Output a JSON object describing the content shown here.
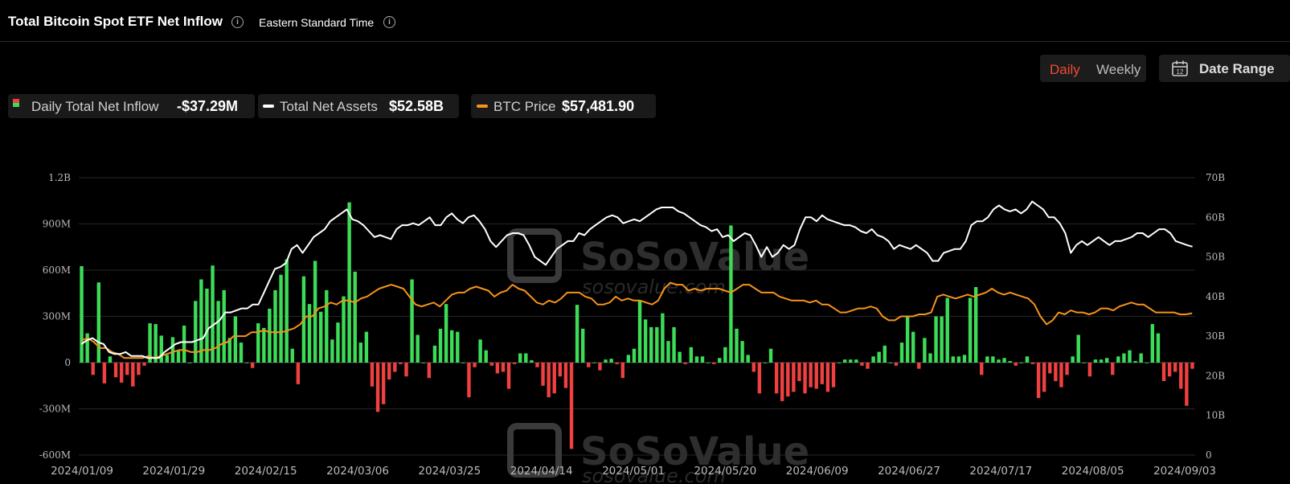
{
  "header": {
    "title": "Total Bitcoin Spot ETF Net Inflow",
    "timezone": "Eastern Standard Time",
    "info_glyph": "i"
  },
  "controls": {
    "daily_label": "Daily",
    "weekly_label": "Weekly",
    "date_range_label": "Date Range",
    "active_color": "#f04a36",
    "calendar_icon_text": "12"
  },
  "legend": {
    "inflow": {
      "label": "Daily Total Net Inflow",
      "value": "-$37.29M"
    },
    "assets": {
      "label": "Total Net Assets",
      "value": "$52.58B"
    },
    "price": {
      "label": "BTC Price",
      "value": "$57,481.90"
    }
  },
  "colors": {
    "positive": "#3ddc58",
    "negative": "#f04040",
    "assets_line": "#ffffff",
    "price_line": "#f7931a"
  },
  "watermark": {
    "brand": "SoSoValue",
    "site": "sosovalue.com"
  },
  "chart_data": {
    "type": "bar",
    "x_start": "2024/01/11",
    "x_end": "2024/09/03",
    "x_tick_labels": [
      "2024/01/09",
      "2024/01/29",
      "2024/02/15",
      "2024/03/06",
      "2024/03/25",
      "2024/04/14",
      "2024/05/01",
      "2024/05/20",
      "2024/06/09",
      "2024/06/27",
      "2024/07/17",
      "2024/08/05",
      "2024/09/03"
    ],
    "y_left_ticks": [
      "1.2B",
      "900M",
      "600M",
      "300M",
      "0",
      "-300M",
      "-600M"
    ],
    "y_left_range_musd": [
      -600,
      1200
    ],
    "y_right_ticks": [
      "70B",
      "60B",
      "50B",
      "40B",
      "30B",
      "20B",
      "10B",
      "0"
    ],
    "y_right_range_busd": [
      0,
      70
    ],
    "grid": true,
    "series": [
      {
        "name": "Daily Total Net Inflow",
        "kind": "bar",
        "unit": "M USD",
        "values": [
          626,
          190,
          -80,
          520,
          -135,
          40,
          -95,
          -130,
          -80,
          -155,
          -80,
          -20,
          255,
          250,
          175,
          50,
          165,
          75,
          240,
          0,
          400,
          540,
          480,
          630,
          400,
          470,
          160,
          300,
          130,
          0,
          -35,
          255,
          225,
          350,
          470,
          570,
          670,
          90,
          -140,
          560,
          380,
          660,
          330,
          470,
          150,
          260,
          430,
          1040,
          590,
          130,
          200,
          -155,
          -320,
          -270,
          -110,
          -60,
          -10,
          -90,
          540,
          180,
          0,
          -100,
          110,
          220,
          380,
          210,
          200,
          0,
          -225,
          -30,
          150,
          80,
          -20,
          -70,
          -60,
          -170,
          -10,
          60,
          60,
          15,
          -30,
          -150,
          -225,
          -200,
          -90,
          -165,
          -560,
          375,
          220,
          -30,
          0,
          -50,
          20,
          25,
          -10,
          -100,
          50,
          90,
          400,
          280,
          230,
          230,
          320,
          140,
          230,
          70,
          -10,
          100,
          40,
          40,
          0,
          -10,
          30,
          100,
          890,
          220,
          140,
          50,
          -60,
          -200,
          0,
          90,
          -200,
          -250,
          -220,
          -190,
          -120,
          -200,
          -160,
          -170,
          -140,
          -190,
          -160,
          0,
          20,
          20,
          20,
          -20,
          -40,
          40,
          70,
          110,
          0,
          -20,
          130,
          300,
          200,
          -40,
          160,
          60,
          300,
          300,
          420,
          40,
          40,
          50,
          420,
          490,
          -80,
          40,
          40,
          20,
          30,
          10,
          -20,
          0,
          40,
          -10,
          -230,
          -190,
          -70,
          -120,
          -160,
          -80,
          40,
          180,
          0,
          -90,
          20,
          20,
          30,
          -80,
          40,
          60,
          80,
          10,
          60,
          0,
          250,
          190,
          -120,
          -90,
          -60,
          -170,
          -280,
          -40
        ]
      },
      {
        "name": "Total Net Assets",
        "kind": "line",
        "unit": "B USD",
        "values": [
          28,
          29,
          29.5,
          28.5,
          28,
          26,
          25.5,
          25.5,
          26,
          25,
          25,
          25,
          24.5,
          24.5,
          24.5,
          26,
          27,
          28,
          28.5,
          28.5,
          28.5,
          29,
          29.5,
          32,
          33,
          34,
          36,
          36,
          36.5,
          37,
          37,
          38,
          38,
          41,
          44,
          47,
          47.5,
          48.5,
          52,
          53,
          51,
          53,
          55,
          56,
          57,
          59,
          60,
          61,
          62,
          59.5,
          59,
          58,
          56.5,
          55,
          55.5,
          55,
          54.5,
          57,
          58,
          58,
          58.5,
          58,
          59,
          60,
          58,
          58,
          60,
          61,
          59.5,
          58.5,
          60,
          60.5,
          59,
          57,
          54,
          52.5,
          54,
          55.5,
          56,
          56,
          55.5,
          53,
          50,
          49,
          48,
          50,
          52,
          53,
          54,
          54,
          56,
          55.5,
          57,
          58,
          59,
          60,
          60.5,
          60,
          58.5,
          59,
          59.5,
          59,
          60,
          61,
          62,
          62.5,
          62.5,
          62.5,
          61.5,
          61,
          60,
          59,
          58,
          57.5,
          56.5,
          57,
          55,
          55.5,
          54,
          55,
          56,
          55.5,
          53,
          50,
          52.5,
          50,
          51,
          53,
          52,
          53,
          57,
          60,
          60,
          59,
          60.5,
          59.5,
          59,
          58.5,
          58,
          58,
          57.5,
          56.5,
          56,
          57,
          55.5,
          55,
          54,
          52,
          53,
          52.5,
          52,
          53,
          52,
          51,
          49,
          49,
          51,
          51.5,
          52,
          52,
          54,
          58,
          59,
          59,
          60,
          62,
          63,
          62,
          61.5,
          62,
          61,
          62,
          64,
          63,
          62,
          60,
          60,
          58.5,
          56,
          51,
          53,
          54,
          53,
          54,
          55,
          54,
          53,
          54,
          54,
          54.5,
          55,
          56,
          56,
          55,
          56,
          57,
          57,
          56,
          54,
          53.5,
          53,
          52.6
        ]
      },
      {
        "name": "BTC Price",
        "kind": "line",
        "unit": "B USD (right axis)",
        "values": [
          29,
          29.5,
          28.5,
          27,
          27,
          26,
          25.5,
          24.5,
          24.5,
          24.5,
          24.5,
          25,
          24.5,
          25,
          25.5,
          26,
          26.5,
          26.5,
          26,
          26,
          26.5,
          26.5,
          27,
          28,
          28.5,
          30,
          30,
          30,
          31,
          31,
          31.5,
          31,
          31,
          31,
          31.5,
          32,
          33,
          35,
          35,
          37,
          37.5,
          38.5,
          38,
          39,
          39,
          38.5,
          39.5,
          40,
          41,
          42,
          42.5,
          43,
          42.5,
          42,
          40,
          38,
          37.5,
          38,
          38.5,
          37.5,
          39,
          40.5,
          41,
          41,
          42,
          42.5,
          42,
          41.5,
          40,
          41,
          41.5,
          43,
          42,
          41.5,
          40,
          38.5,
          38,
          39,
          38.5,
          39.5,
          41,
          41,
          41,
          40,
          39.5,
          38,
          38,
          38.5,
          40,
          39,
          39.5,
          39,
          39,
          38.5,
          38,
          39,
          42,
          43.5,
          43,
          43,
          41.5,
          42,
          41.5,
          42,
          42,
          42,
          41.5,
          41,
          42,
          43,
          43,
          42,
          41,
          41,
          41,
          40,
          39.5,
          39,
          39,
          39,
          38.5,
          39,
          38,
          38,
          37,
          36,
          36,
          36.5,
          37,
          37,
          37.5,
          37,
          35,
          34,
          34,
          35,
          35,
          35,
          35.5,
          35.5,
          36,
          40,
          40.5,
          40,
          39.5,
          40,
          40.5,
          40,
          40.5,
          41,
          42,
          41,
          40.5,
          41,
          40.5,
          40,
          39.5,
          38,
          35,
          33,
          34,
          36,
          35.5,
          36.5,
          36,
          36,
          35.5,
          36,
          37,
          37,
          36.5,
          37.5,
          38,
          38.5,
          38,
          38,
          37,
          36,
          36,
          36,
          36,
          35.5,
          35.5,
          35.8
        ]
      }
    ]
  }
}
